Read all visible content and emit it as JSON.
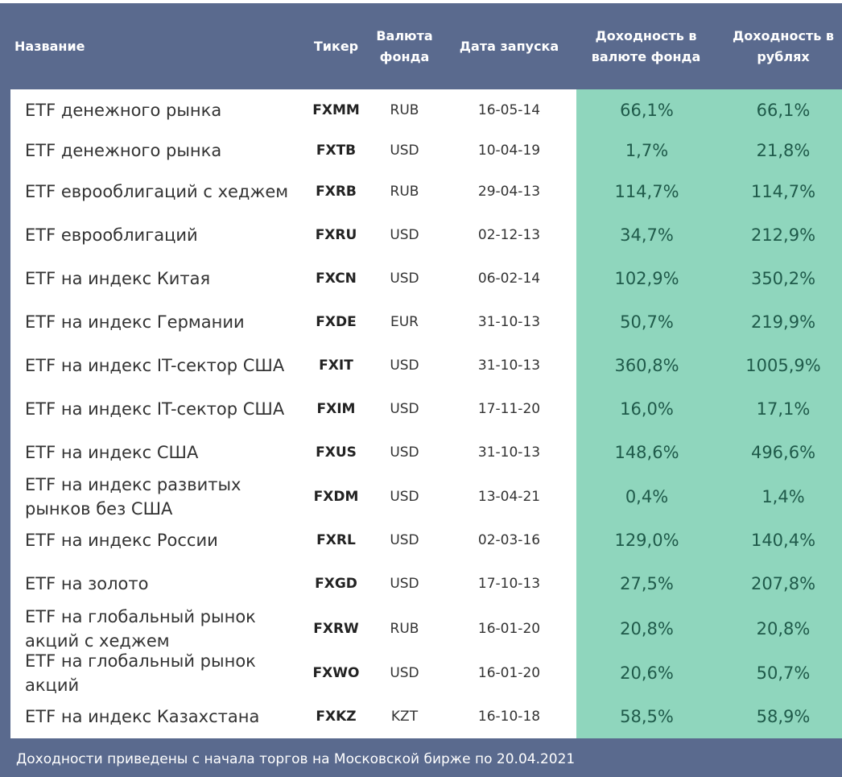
{
  "header": {
    "name": "Название",
    "ticker": "Тикер",
    "currency": "Валюта фонда",
    "date": "Дата запуска",
    "yield_fund": "Доходность в валюте фонда",
    "yield_rub": "Доходность в рублях"
  },
  "colors": {
    "header_bg": "#5a6a8e",
    "green_col": "#8fd6bd",
    "green_text": "#1f5a4a"
  },
  "rows": [
    {
      "name": "ETF денежного рынка",
      "ticker": "FXMM",
      "currency": "RUB",
      "date": "16-05-14",
      "yield_fund": "66,1%",
      "yield_rub": "66,1%"
    },
    {
      "name": "ETF денежного рынка",
      "ticker": "FXTB",
      "currency": "USD",
      "date": "10-04-19",
      "yield_fund": "1,7%",
      "yield_rub": "21,8%"
    },
    {
      "name": "ETF еврооблигаций с хеджем",
      "ticker": "FXRB",
      "currency": "RUB",
      "date": "29-04-13",
      "yield_fund": "114,7%",
      "yield_rub": "114,7%"
    },
    {
      "name": "ETF еврооблигаций",
      "ticker": "FXRU",
      "currency": "USD",
      "date": "02-12-13",
      "yield_fund": "34,7%",
      "yield_rub": "212,9%"
    },
    {
      "name": "ETF на индекс Китая",
      "ticker": "FXCN",
      "currency": "USD",
      "date": "06-02-14",
      "yield_fund": "102,9%",
      "yield_rub": "350,2%"
    },
    {
      "name": "ETF на индекс Германии",
      "ticker": "FXDE",
      "currency": "EUR",
      "date": "31-10-13",
      "yield_fund": "50,7%",
      "yield_rub": "219,9%"
    },
    {
      "name": "ETF на индекс IT-сектор США",
      "ticker": "FXIT",
      "currency": "USD",
      "date": "31-10-13",
      "yield_fund": "360,8%",
      "yield_rub": "1005,9%"
    },
    {
      "name": "ETF на индекс IT-сектор США",
      "ticker": "FXIM",
      "currency": "USD",
      "date": "17-11-20",
      "yield_fund": "16,0%",
      "yield_rub": "17,1%"
    },
    {
      "name": "ETF на индекс США",
      "ticker": "FXUS",
      "currency": "USD",
      "date": "31-10-13",
      "yield_fund": "148,6%",
      "yield_rub": "496,6%"
    },
    {
      "name": "ETF на индекс развитых рынков без США",
      "ticker": "FXDM",
      "currency": "USD",
      "date": "13-04-21",
      "yield_fund": "0,4%",
      "yield_rub": "1,4%"
    },
    {
      "name": "ETF на индекс России",
      "ticker": "FXRL",
      "currency": "USD",
      "date": "02-03-16",
      "yield_fund": "129,0%",
      "yield_rub": "140,4%"
    },
    {
      "name": "ETF на золото",
      "ticker": "FXGD",
      "currency": "USD",
      "date": "17-10-13",
      "yield_fund": "27,5%",
      "yield_rub": "207,8%"
    },
    {
      "name": "ETF на глобальный рынок акций с хеджем",
      "ticker": "FXRW",
      "currency": "RUB",
      "date": "16-01-20",
      "yield_fund": "20,8%",
      "yield_rub": "20,8%"
    },
    {
      "name": "ETF на глобальный рынок акций",
      "ticker": "FXWO",
      "currency": "USD",
      "date": "16-01-20",
      "yield_fund": "20,6%",
      "yield_rub": "50,7%"
    },
    {
      "name": "ETF на индекс Казахстана",
      "ticker": "FXKZ",
      "currency": "KZT",
      "date": "16-10-18",
      "yield_fund": "58,5%",
      "yield_rub": "58,9%"
    }
  ],
  "footnote": "Доходности приведены с начала торгов на Московской бирже по 20.04.2021"
}
